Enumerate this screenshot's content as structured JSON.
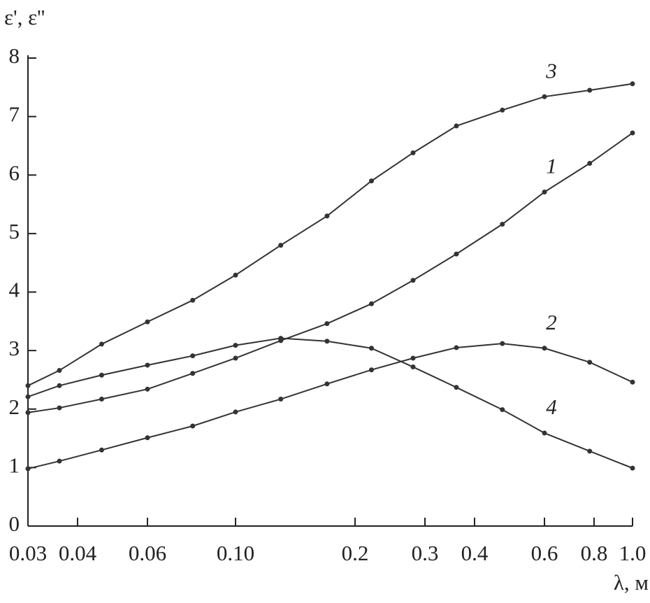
{
  "chart_data": {
    "type": "line",
    "x_label": "λ, м",
    "y_label": "ε', ε''",
    "x": [
      0.03,
      0.036,
      0.046,
      0.06,
      0.078,
      0.1,
      0.13,
      0.17,
      0.22,
      0.28,
      0.36,
      0.47,
      0.6,
      0.78,
      1.0
    ],
    "log_x": true,
    "xlim": [
      0.03,
      1.0
    ],
    "xticks": [
      0.03,
      0.04,
      0.06,
      {
        "value": 0.1,
        "label": "0.10"
      },
      0.2,
      0.3,
      0.4,
      0.6,
      0.8,
      {
        "value": 1.0,
        "label": "1.0"
      }
    ],
    "ylim": [
      0,
      8
    ],
    "yticks": [
      0,
      1,
      2,
      3,
      4,
      5,
      6,
      7,
      8
    ],
    "series": [
      {
        "name": "3",
        "color": "#333333",
        "values": [
          2.4,
          2.66,
          3.11,
          3.49,
          3.86,
          4.29,
          4.8,
          5.3,
          5.9,
          6.38,
          6.84,
          7.11,
          7.34,
          7.45,
          7.56
        ]
      },
      {
        "name": "1",
        "color": "#333333",
        "values": [
          1.94,
          2.02,
          2.17,
          2.34,
          2.61,
          2.87,
          3.17,
          3.46,
          3.8,
          4.2,
          4.65,
          5.16,
          5.71,
          6.2,
          6.72
        ]
      },
      {
        "name": "4",
        "color": "#333333",
        "values": [
          2.21,
          2.4,
          2.58,
          2.75,
          2.91,
          3.09,
          3.21,
          3.16,
          3.04,
          2.72,
          2.37,
          1.99,
          1.59,
          1.28,
          0.99
        ]
      },
      {
        "name": "2",
        "color": "#333333",
        "values": [
          0.98,
          1.11,
          1.3,
          1.51,
          1.71,
          1.95,
          2.17,
          2.43,
          2.67,
          2.87,
          3.05,
          3.12,
          3.04,
          2.8,
          2.46
        ]
      }
    ]
  }
}
